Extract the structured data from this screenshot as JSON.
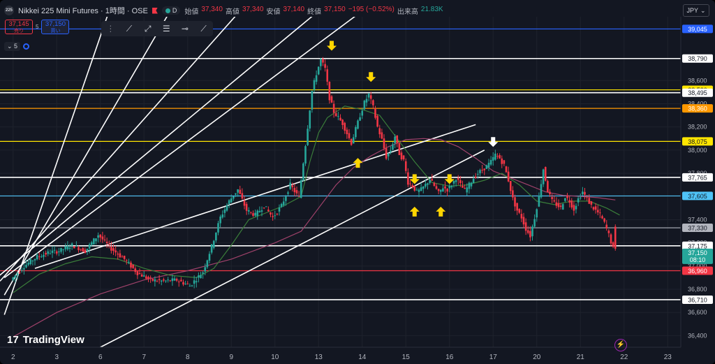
{
  "header": {
    "logo_text": "225",
    "title": "Nikkei 225 Mini Futures · 1時間 · OSE",
    "status_letter": "D",
    "ohlc": [
      {
        "k": "始値",
        "v": "37,340"
      },
      {
        "k": "高値",
        "v": "37,340"
      },
      {
        "k": "安値",
        "v": "37,140"
      },
      {
        "k": "終値",
        "v": "37,150"
      },
      {
        "k": "",
        "v": "−195 (−0.52%)"
      }
    ],
    "volume_label": "出来高",
    "volume_value": "21.83K"
  },
  "trade": {
    "sell_price": "37,145",
    "sell_label": "売り",
    "spread": "5",
    "buy_price": "37,150",
    "buy_label": "買い"
  },
  "indicator_chip": {
    "value": "5"
  },
  "currency": "JPY",
  "branding": "TradingView",
  "chart_data": {
    "type": "candlestick",
    "instrument": "Nikkei 225 Mini Futures",
    "timeframe": "1時間",
    "y_range": [
      36300,
      39150
    ],
    "y_ticks": [
      {
        "v": 36400,
        "label": "36,400"
      },
      {
        "v": 36600,
        "label": "36,600"
      },
      {
        "v": 36800,
        "label": "36,800"
      },
      {
        "v": 37000,
        "label": "37,000"
      },
      {
        "v": 37200,
        "label": "37,200"
      },
      {
        "v": 37400,
        "label": "37,400"
      },
      {
        "v": 37600,
        "label": "37,600"
      },
      {
        "v": 37800,
        "label": "37,800"
      },
      {
        "v": 38000,
        "label": "38,000"
      },
      {
        "v": 38200,
        "label": "38,200"
      },
      {
        "v": 38400,
        "label": "38,400"
      },
      {
        "v": 38600,
        "label": "38,600"
      }
    ],
    "x_ticks": [
      {
        "i": 0,
        "label": "2"
      },
      {
        "i": 10,
        "label": "3"
      },
      {
        "i": 20,
        "label": "6"
      },
      {
        "i": 30,
        "label": "7"
      },
      {
        "i": 40,
        "label": "8"
      },
      {
        "i": 50,
        "label": "9"
      },
      {
        "i": 60,
        "label": "10"
      },
      {
        "i": 70,
        "label": "13"
      },
      {
        "i": 80,
        "label": "14"
      },
      {
        "i": 90,
        "label": "15"
      },
      {
        "i": 100,
        "label": "16"
      },
      {
        "i": 110,
        "label": "17"
      },
      {
        "i": 120,
        "label": "20"
      },
      {
        "i": 130,
        "label": "21"
      },
      {
        "i": 140,
        "label": "22"
      },
      {
        "i": 150,
        "label": "23"
      }
    ],
    "x_range": [
      -3,
      153
    ],
    "path_points": [
      [
        0,
        36880
      ],
      [
        3,
        37000
      ],
      [
        6,
        37080
      ],
      [
        9,
        37120
      ],
      [
        11,
        37130
      ],
      [
        14,
        37180
      ],
      [
        17,
        37130
      ],
      [
        20,
        37270
      ],
      [
        23,
        37150
      ],
      [
        26,
        37060
      ],
      [
        29,
        36940
      ],
      [
        32,
        36880
      ],
      [
        35,
        36870
      ],
      [
        38,
        36880
      ],
      [
        41,
        36830
      ],
      [
        44,
        36950
      ],
      [
        46,
        37170
      ],
      [
        48,
        37420
      ],
      [
        50,
        37560
      ],
      [
        52,
        37660
      ],
      [
        54,
        37480
      ],
      [
        56,
        37440
      ],
      [
        58,
        37520
      ],
      [
        60,
        37420
      ],
      [
        62,
        37520
      ],
      [
        64,
        37700
      ],
      [
        66,
        37590
      ],
      [
        68,
        38200
      ],
      [
        69,
        38510
      ],
      [
        70,
        38660
      ],
      [
        71,
        38780
      ],
      [
        72,
        38700
      ],
      [
        73,
        38450
      ],
      [
        74,
        38330
      ],
      [
        76,
        38230
      ],
      [
        78,
        38060
      ],
      [
        80,
        38300
      ],
      [
        81,
        38410
      ],
      [
        82,
        38480
      ],
      [
        83,
        38370
      ],
      [
        84,
        38200
      ],
      [
        85,
        38090
      ],
      [
        86,
        37940
      ],
      [
        87,
        38000
      ],
      [
        88,
        38120
      ],
      [
        89,
        37970
      ],
      [
        90,
        37910
      ],
      [
        91,
        37720
      ],
      [
        92,
        37690
      ],
      [
        93,
        37640
      ],
      [
        94,
        37660
      ],
      [
        95,
        37700
      ],
      [
        96,
        37750
      ],
      [
        97,
        37690
      ],
      [
        98,
        37630
      ],
      [
        99,
        37680
      ],
      [
        100,
        37660
      ],
      [
        101,
        37700
      ],
      [
        102,
        37760
      ],
      [
        103,
        37700
      ],
      [
        104,
        37650
      ],
      [
        105,
        37700
      ],
      [
        106,
        37760
      ],
      [
        107,
        37800
      ],
      [
        108,
        37830
      ],
      [
        109,
        37860
      ],
      [
        110,
        37900
      ],
      [
        111,
        37960
      ],
      [
        112,
        37930
      ],
      [
        113,
        37870
      ],
      [
        114,
        37740
      ],
      [
        115,
        37580
      ],
      [
        116,
        37480
      ],
      [
        117,
        37420
      ],
      [
        118,
        37320
      ],
      [
        119,
        37260
      ],
      [
        120,
        37420
      ],
      [
        121,
        37600
      ],
      [
        122,
        37840
      ],
      [
        123,
        37650
      ],
      [
        124,
        37560
      ],
      [
        125,
        37530
      ],
      [
        126,
        37500
      ],
      [
        127,
        37600
      ],
      [
        128,
        37560
      ],
      [
        129,
        37490
      ],
      [
        130,
        37580
      ],
      [
        131,
        37640
      ],
      [
        132,
        37580
      ],
      [
        133,
        37520
      ],
      [
        134,
        37480
      ],
      [
        135,
        37440
      ],
      [
        136,
        37370
      ],
      [
        137,
        37270
      ],
      [
        138,
        37150
      ]
    ],
    "ma_short": [
      [
        0,
        36770
      ],
      [
        6,
        36930
      ],
      [
        12,
        37020
      ],
      [
        18,
        37080
      ],
      [
        24,
        37060
      ],
      [
        30,
        36980
      ],
      [
        36,
        36920
      ],
      [
        42,
        36900
      ],
      [
        46,
        36980
      ],
      [
        50,
        37180
      ],
      [
        54,
        37400
      ],
      [
        58,
        37460
      ],
      [
        62,
        37520
      ],
      [
        66,
        37600
      ],
      [
        68,
        37900
      ],
      [
        70,
        38150
      ],
      [
        72,
        38280
      ],
      [
        76,
        38380
      ],
      [
        80,
        38350
      ],
      [
        84,
        38300
      ],
      [
        88,
        38100
      ],
      [
        92,
        37900
      ],
      [
        96,
        37720
      ],
      [
        100,
        37690
      ],
      [
        104,
        37700
      ],
      [
        108,
        37740
      ],
      [
        112,
        37800
      ],
      [
        116,
        37700
      ],
      [
        120,
        37560
      ],
      [
        124,
        37530
      ],
      [
        128,
        37560
      ],
      [
        132,
        37560
      ],
      [
        136,
        37500
      ],
      [
        139,
        37440
      ]
    ],
    "ma_long": [
      [
        0,
        36390
      ],
      [
        10,
        36600
      ],
      [
        20,
        36760
      ],
      [
        30,
        36880
      ],
      [
        40,
        36960
      ],
      [
        50,
        37060
      ],
      [
        60,
        37200
      ],
      [
        66,
        37300
      ],
      [
        70,
        37500
      ],
      [
        74,
        37700
      ],
      [
        78,
        37850
      ],
      [
        82,
        37950
      ],
      [
        86,
        38030
      ],
      [
        90,
        38090
      ],
      [
        94,
        38100
      ],
      [
        98,
        38090
      ],
      [
        102,
        38030
      ],
      [
        106,
        37930
      ],
      [
        110,
        37820
      ],
      [
        114,
        37760
      ],
      [
        118,
        37700
      ],
      [
        122,
        37640
      ],
      [
        126,
        37610
      ],
      [
        130,
        37600
      ],
      [
        134,
        37590
      ],
      [
        138,
        37570
      ]
    ],
    "horizontal_levels": [
      {
        "price": 39045,
        "label": "39,045",
        "color": "#2962ff"
      },
      {
        "price": 38790,
        "label": "38,790",
        "color": "#ffffff"
      },
      {
        "price": 38520,
        "label": "38,520",
        "color": "#ffe600"
      },
      {
        "price": 38495,
        "label": "38,495",
        "color": "#ffffff"
      },
      {
        "price": 38360,
        "label": "38,360",
        "color": "#ff9800"
      },
      {
        "price": 38075,
        "label": "38,075",
        "color": "#ffe600"
      },
      {
        "price": 37765,
        "label": "37,765",
        "color": "#ffffff"
      },
      {
        "price": 37605,
        "label": "37,605",
        "color": "#4fc3f7"
      },
      {
        "price": 37330,
        "label": "37,330",
        "color": "#b2b5be"
      },
      {
        "price": 37175,
        "label": "37,175",
        "color": "#ffffff"
      },
      {
        "price": 36960,
        "label": "36,960",
        "color": "#f23645"
      },
      {
        "price": 36710,
        "label": "36,710",
        "color": "#ffffff"
      }
    ],
    "last_price": {
      "price": 37150,
      "label": "37,150",
      "countdown": "08:10",
      "color": "#26a69a"
    },
    "trend_lines": [
      {
        "a": [
          -5,
          36860
        ],
        "b": [
          70,
          39200
        ]
      },
      {
        "a": [
          5,
          36980
        ],
        "b": [
          106,
          38220
        ]
      },
      {
        "a": [
          -3,
          36870
        ],
        "b": [
          52,
          39200
        ]
      },
      {
        "a": [
          -2,
          36750
        ],
        "b": [
          36,
          39200
        ]
      },
      {
        "a": [
          -2,
          36580
        ],
        "b": [
          22,
          39200
        ]
      },
      {
        "a": [
          -2,
          36900
        ],
        "b": [
          80,
          39200
        ]
      },
      {
        "a": [
          20,
          36300
        ],
        "b": [
          108,
          38000
        ]
      }
    ],
    "arrows": [
      {
        "i": 73,
        "price": 38870,
        "dir": "down",
        "color": "#ffd600"
      },
      {
        "i": 82,
        "price": 38600,
        "dir": "down",
        "color": "#ffd600"
      },
      {
        "i": 79,
        "price": 37920,
        "dir": "up",
        "color": "#ffd600"
      },
      {
        "i": 92,
        "price": 37720,
        "dir": "down",
        "color": "#ffd600"
      },
      {
        "i": 100,
        "price": 37720,
        "dir": "down",
        "color": "#ffd600"
      },
      {
        "i": 92,
        "price": 37500,
        "dir": "up",
        "color": "#ffd600"
      },
      {
        "i": 98,
        "price": 37500,
        "dir": "up",
        "color": "#ffd600"
      },
      {
        "i": 110,
        "price": 38040,
        "dir": "down",
        "color": "#ffffff"
      }
    ],
    "colors": {
      "up": "#26a69a",
      "down": "#f23645",
      "ma_short": "#3a7d3a",
      "ma_long": "#a0426b",
      "grid": "#1e222d"
    }
  }
}
